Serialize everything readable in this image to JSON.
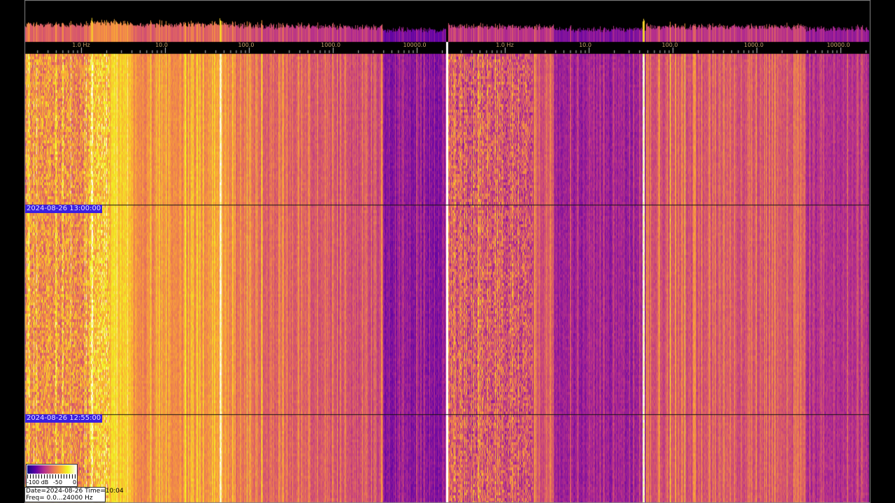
{
  "freq_axis": {
    "scale": "log",
    "ticks": [
      "1.0 Hz",
      "10.0",
      "100.0",
      "1000.0",
      "10000.0"
    ]
  },
  "time_markers": [
    "2024-08-26 13:00:00",
    "2024-08-26 12:55:00"
  ],
  "legend": {
    "min_label": "-100 dB",
    "mid_label": "-50",
    "max_label": "0",
    "colormap": [
      "#0d0887",
      "#5c01a6",
      "#b12a90",
      "#e16462",
      "#fca636",
      "#f0f921",
      "#ffffff"
    ]
  },
  "info": {
    "date_time": "Date=2024-08-26 Time=10:04",
    "freq": "Freq= 0.0...24000 Hz"
  },
  "colors": {
    "background": "#000000",
    "marker_label_bg": "#3a1ee0",
    "mains_line": "#ffe45a"
  }
}
